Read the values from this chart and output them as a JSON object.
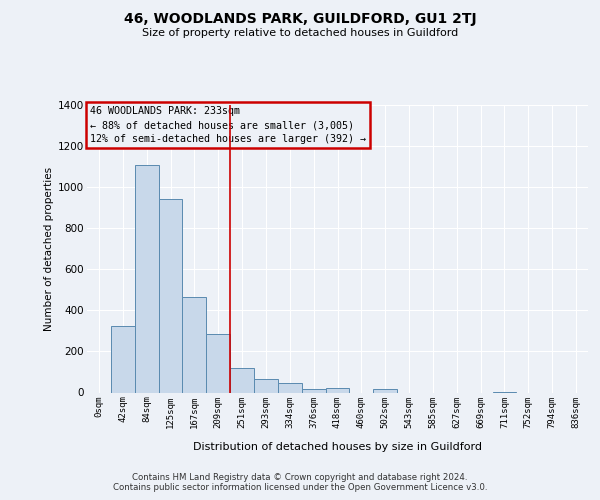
{
  "title": "46, WOODLANDS PARK, GUILDFORD, GU1 2TJ",
  "subtitle": "Size of property relative to detached houses in Guildford",
  "xlabel": "Distribution of detached houses by size in Guildford",
  "ylabel": "Number of detached properties",
  "bar_color": "#c8d8ea",
  "bar_edge_color": "#5a8ab0",
  "background_color": "#edf1f7",
  "grid_color": "#ffffff",
  "categories": [
    "0sqm",
    "42sqm",
    "84sqm",
    "125sqm",
    "167sqm",
    "209sqm",
    "251sqm",
    "293sqm",
    "334sqm",
    "376sqm",
    "418sqm",
    "460sqm",
    "502sqm",
    "543sqm",
    "585sqm",
    "627sqm",
    "669sqm",
    "711sqm",
    "752sqm",
    "794sqm",
    "836sqm"
  ],
  "values": [
    0,
    325,
    1110,
    940,
    465,
    285,
    120,
    68,
    45,
    18,
    20,
    0,
    15,
    0,
    0,
    0,
    0,
    3,
    0,
    0,
    0
  ],
  "ylim": [
    0,
    1400
  ],
  "yticks": [
    0,
    200,
    400,
    600,
    800,
    1000,
    1200,
    1400
  ],
  "vline_x": 5.5,
  "vline_color": "#cc0000",
  "annotation_title": "46 WOODLANDS PARK: 233sqm",
  "annotation_line1": "← 88% of detached houses are smaller (3,005)",
  "annotation_line2": "12% of semi-detached houses are larger (392) →",
  "annotation_box_edgecolor": "#cc0000",
  "footer_line1": "Contains HM Land Registry data © Crown copyright and database right 2024.",
  "footer_line2": "Contains public sector information licensed under the Open Government Licence v3.0."
}
